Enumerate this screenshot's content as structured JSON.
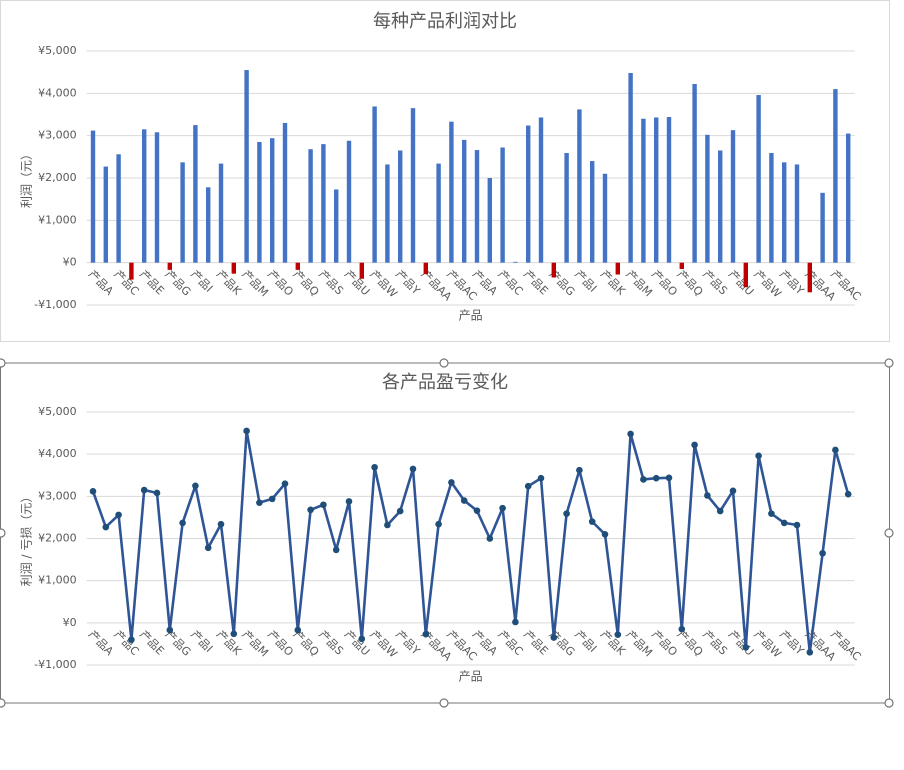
{
  "chart_data": [
    {
      "type": "bar",
      "title": "每种产品利润对比",
      "x_label": "产品",
      "y_label": "利润（元）",
      "categories": [
        "产品A",
        null,
        "产品C",
        null,
        "产品E",
        null,
        "产品G",
        null,
        "产品I",
        null,
        "产品K",
        null,
        "产品M",
        null,
        "产品O",
        null,
        "产品Q",
        null,
        "产品S",
        null,
        "产品U",
        null,
        "产品W",
        null,
        "产品Y",
        null,
        "产品AA",
        null,
        "产品AC",
        null,
        "产品A",
        null,
        "产品C",
        null,
        "产品E",
        null,
        "产品G",
        null,
        "产品I",
        null,
        "产品K",
        null,
        "产品M",
        null,
        "产品O",
        null,
        "产品Q",
        null,
        "产品S",
        null,
        "产品U",
        null,
        "产品W",
        null,
        "产品Y",
        null,
        "产品AA",
        null,
        "产品AC",
        null
      ],
      "values": [
        3120,
        2270,
        2560,
        -400,
        3150,
        3080,
        -170,
        2370,
        3250,
        1780,
        2340,
        -260,
        4550,
        2850,
        2940,
        3300,
        -170,
        2680,
        2800,
        1730,
        2880,
        -380,
        3690,
        2320,
        2650,
        3650,
        -270,
        2340,
        3330,
        2900,
        2660,
        2000,
        2720,
        20,
        3240,
        3430,
        -350,
        2590,
        3620,
        2400,
        2100,
        -280,
        4480,
        3400,
        3430,
        3440,
        -150,
        4220,
        3020,
        2650,
        3130,
        -580,
        3960,
        2590,
        2370,
        2320,
        -700,
        1650,
        4100,
        3050
      ],
      "color": "#4472c4",
      "negative_color": "#c00000",
      "ylim": [
        -1000,
        5000
      ],
      "yticks": [
        {
          "value": -1000,
          "label": "-¥1,000"
        },
        {
          "value": 0,
          "label": "¥0"
        },
        {
          "value": 1000,
          "label": "¥1,000"
        },
        {
          "value": 2000,
          "label": "¥2,000"
        },
        {
          "value": 3000,
          "label": "¥3,000"
        },
        {
          "value": 4000,
          "label": "¥4,000"
        },
        {
          "value": 5000,
          "label": "¥5,000"
        }
      ],
      "grid": true
    },
    {
      "type": "line",
      "title": "各产品盈亏变化",
      "x_label": "产品",
      "y_label": "利润 / 亏损（元）",
      "categories": [
        "产品A",
        null,
        "产品C",
        null,
        "产品E",
        null,
        "产品G",
        null,
        "产品I",
        null,
        "产品K",
        null,
        "产品M",
        null,
        "产品O",
        null,
        "产品Q",
        null,
        "产品S",
        null,
        "产品U",
        null,
        "产品W",
        null,
        "产品Y",
        null,
        "产品AA",
        null,
        "产品AC",
        null,
        "产品A",
        null,
        "产品C",
        null,
        "产品E",
        null,
        "产品G",
        null,
        "产品I",
        null,
        "产品K",
        null,
        "产品M",
        null,
        "产品O",
        null,
        "产品Q",
        null,
        "产品S",
        null,
        "产品U",
        null,
        "产品W",
        null,
        "产品Y",
        null,
        "产品AA",
        null,
        "产品AC",
        null
      ],
      "values": [
        3120,
        2270,
        2560,
        -400,
        3150,
        3080,
        -170,
        2370,
        3250,
        1780,
        2340,
        -260,
        4550,
        2850,
        2940,
        3300,
        -170,
        2680,
        2800,
        1730,
        2880,
        -380,
        3690,
        2320,
        2650,
        3650,
        -270,
        2340,
        3330,
        2900,
        2660,
        2000,
        2720,
        20,
        3240,
        3430,
        -350,
        2590,
        3620,
        2400,
        2100,
        -280,
        4480,
        3400,
        3430,
        3440,
        -150,
        4220,
        3020,
        2650,
        3130,
        -580,
        3960,
        2590,
        2370,
        2320,
        -700,
        1650,
        4100,
        3050
      ],
      "color": "#2f5597",
      "marker_color": "#1f4e79",
      "ylim": [
        -1000,
        5000
      ],
      "yticks": [
        {
          "value": -1000,
          "label": "-¥1,000"
        },
        {
          "value": 0,
          "label": "¥0"
        },
        {
          "value": 1000,
          "label": "¥1,000"
        },
        {
          "value": 2000,
          "label": "¥2,000"
        },
        {
          "value": 3000,
          "label": "¥3,000"
        },
        {
          "value": 4000,
          "label": "¥4,000"
        },
        {
          "value": 5000,
          "label": "¥5,000"
        }
      ],
      "grid": true
    }
  ]
}
